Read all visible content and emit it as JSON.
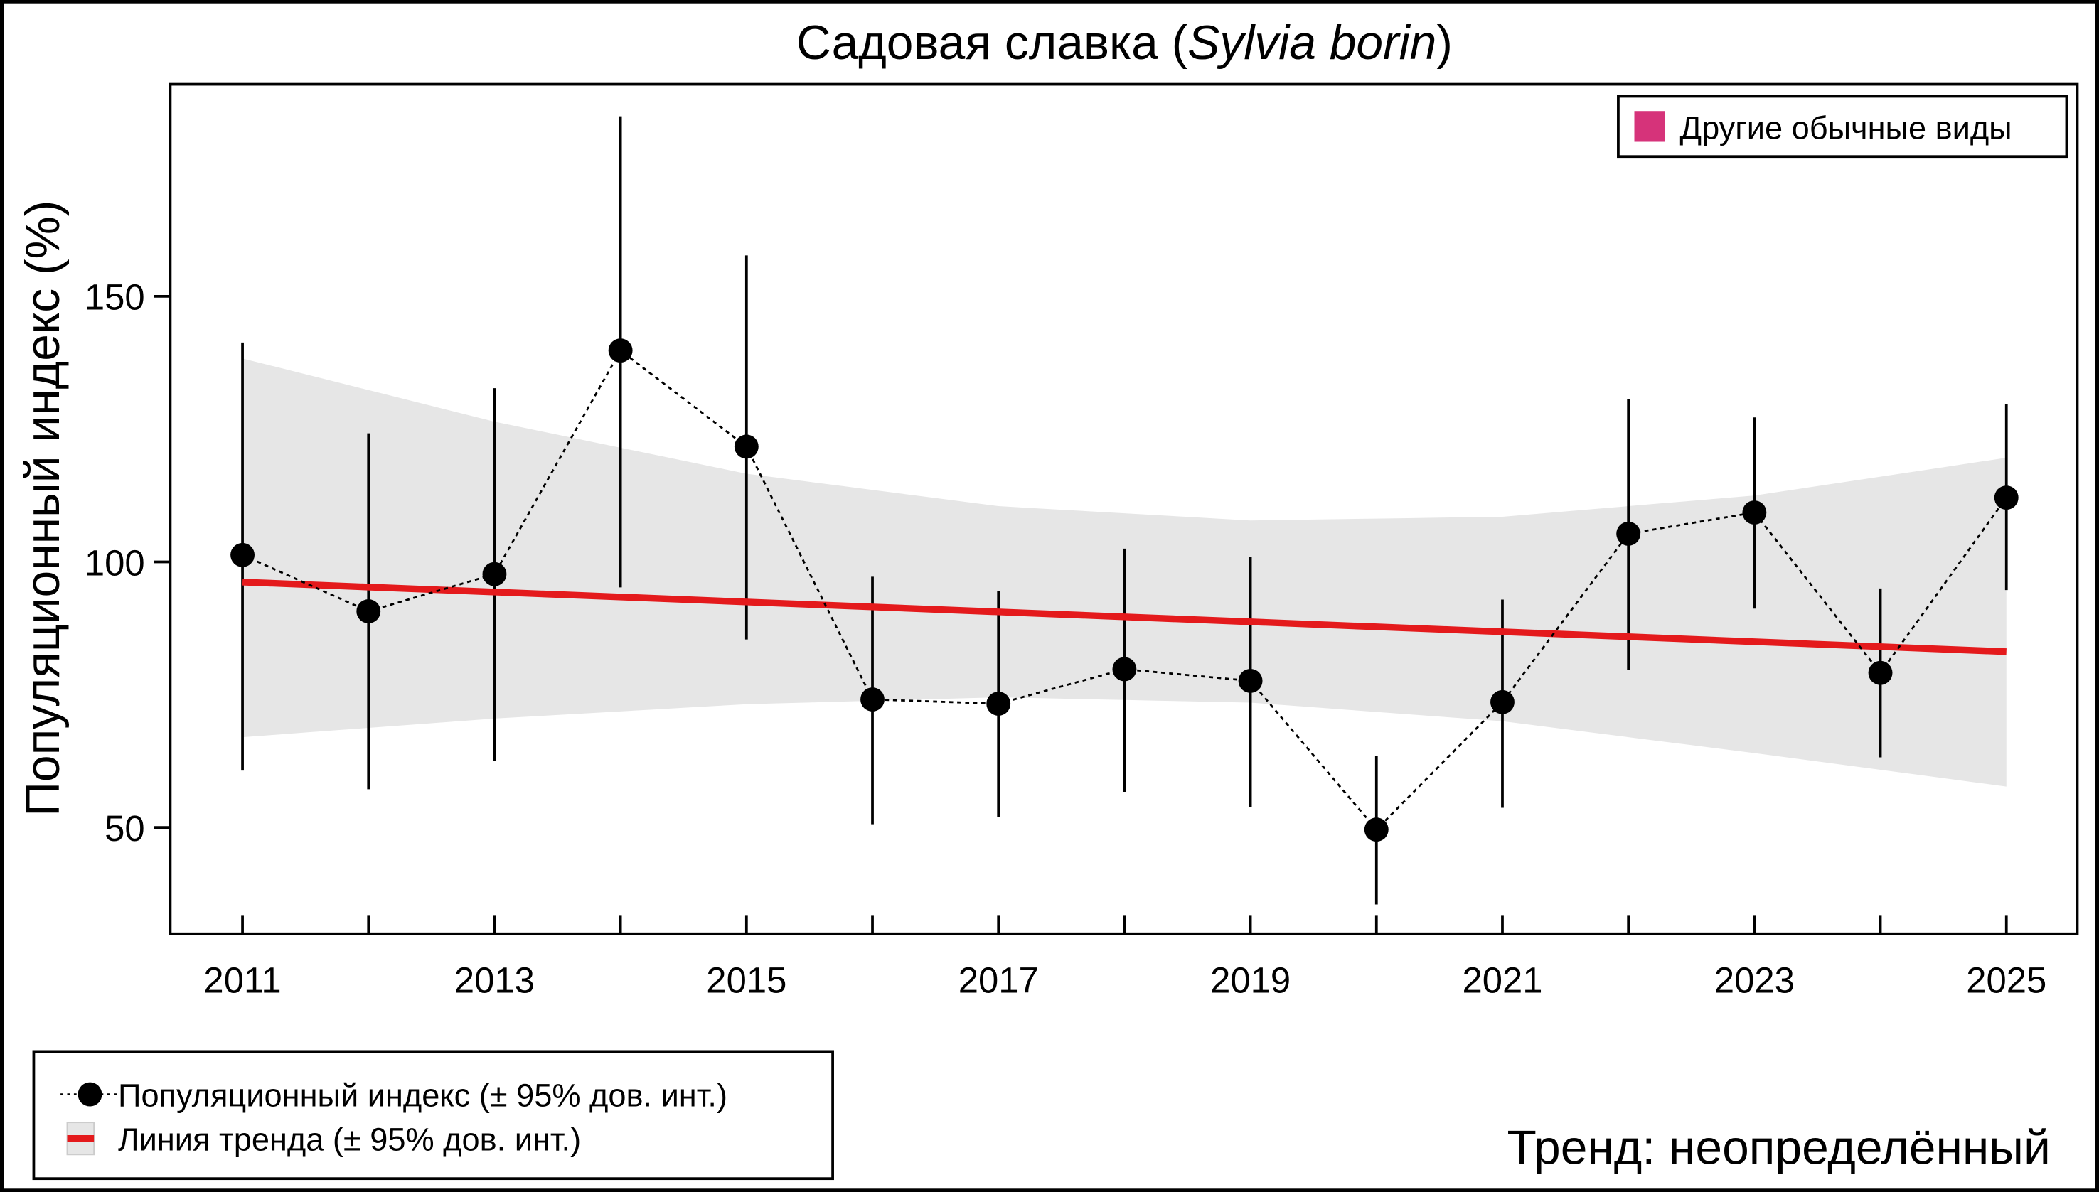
{
  "chart_data": {
    "type": "line",
    "title": "Садовая славка (",
    "title_italic": "Sylvia borin",
    "title_end": ")",
    "ylabel": "Популяционный индекс (%)",
    "xlabel": "",
    "xlim": [
      2010.43,
      2025.57
    ],
    "ylim": [
      30,
      190
    ],
    "x_ticks": [
      "2011",
      "2013",
      "2015",
      "2017",
      "2019",
      "2021",
      "2023",
      "2025"
    ],
    "y_ticks": [
      "50",
      "100",
      "150"
    ],
    "grid": false,
    "series": [
      {
        "name": "Популяционный индекс (± 95% дов. инт.)",
        "x": [
          2011,
          2012,
          2013,
          2014,
          2015,
          2016,
          2017,
          2018,
          2019,
          2020,
          2021,
          2022,
          2023,
          2024,
          2025
        ],
        "values": [
          101.3,
          90.7,
          97.7,
          139.8,
          121.7,
          74.1,
          73.3,
          79.8,
          77.6,
          49.6,
          73.6,
          105.3,
          109.3,
          79.1,
          112.1
        ],
        "ci_lower": [
          60.7,
          57.2,
          62.5,
          95.2,
          85.4,
          50.6,
          51.9,
          56.7,
          53.9,
          35.5,
          53.7,
          79.6,
          91.2,
          63.2,
          94.7
        ],
        "ci_upper": [
          141.3,
          124.2,
          132.7,
          183.9,
          157.7,
          97.2,
          94.5,
          102.5,
          101.0,
          63.5,
          92.9,
          130.7,
          127.2,
          95.0,
          129.7
        ],
        "color": "#000000"
      },
      {
        "name": "Линия тренда (± 95% дов. инт.)",
        "x": [
          2011,
          2025
        ],
        "values": [
          96.2,
          83.1
        ],
        "band_x": [
          2011,
          2013,
          2015,
          2017,
          2019,
          2021,
          2023,
          2025
        ],
        "band_upper": [
          138.3,
          126.4,
          116.6,
          110.5,
          107.8,
          108.5,
          112.5,
          119.6
        ],
        "band_lower": [
          67.0,
          70.5,
          73.2,
          74.5,
          73.5,
          70.0,
          64.0,
          57.7
        ],
        "color": "#e41a1c",
        "band_color": "#e6e6e6"
      }
    ],
    "legend_top": {
      "label": "Другие обычные виды",
      "color": "#d6337a",
      "placement": "top-right"
    },
    "legend_bottom_placement": "bottom-left",
    "annotation": "Тренд: неопределённый"
  }
}
